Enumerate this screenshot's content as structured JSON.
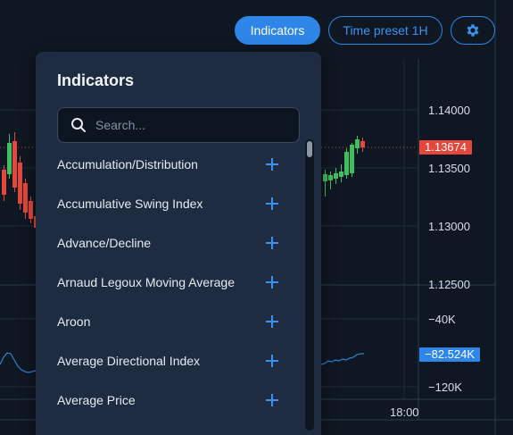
{
  "toolbar": {
    "indicators_label": "Indicators",
    "time_preset_label": "Time preset 1H",
    "settings_icon": "gear-icon"
  },
  "panel": {
    "title": "Indicators",
    "search_placeholder": "Search...",
    "items": [
      {
        "label": "Accumulation/Distribution"
      },
      {
        "label": "Accumulative Swing Index"
      },
      {
        "label": "Advance/Decline"
      },
      {
        "label": "Arnaud Legoux Moving Average"
      },
      {
        "label": "Aroon"
      },
      {
        "label": "Average Directional Index"
      },
      {
        "label": "Average Price"
      }
    ]
  },
  "price_axis": {
    "labels": [
      "1.14000",
      "1.13500",
      "1.13000",
      "1.12500"
    ],
    "current_price": "1.13674",
    "current_price_color": "#e5473c"
  },
  "indicator_axis": {
    "labels": [
      "−40K",
      "−120K"
    ],
    "current_value": "−82.524K",
    "current_value_color": "#2d86e8"
  },
  "time_axis": {
    "labels": [
      "18:00"
    ]
  },
  "colors": {
    "background": "#0f1722",
    "up_candle": "#3fbf5f",
    "down_candle": "#e5473c",
    "accent": "#2d86e8",
    "indicator_line": "#2f80d8"
  }
}
